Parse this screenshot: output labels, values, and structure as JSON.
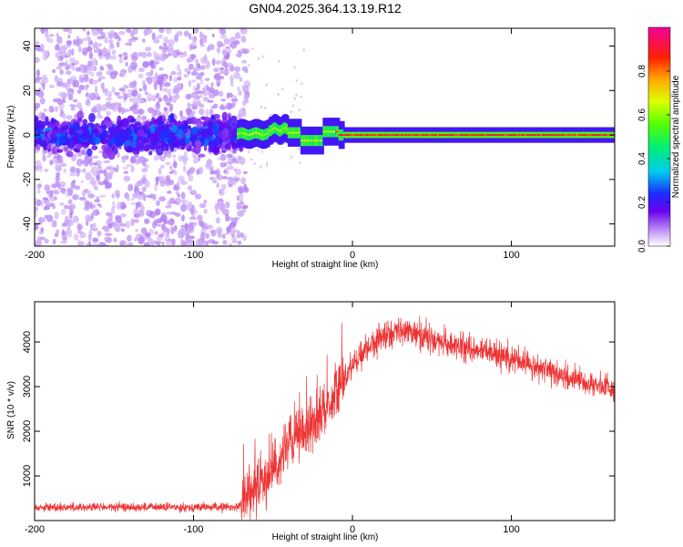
{
  "title": "GN04.2025.364.13.19.R12",
  "chart_data": [
    {
      "type": "heatmap",
      "name": "spectrogram",
      "xlabel": "Height of straight line (km)",
      "ylabel": "Frequency (Hz)",
      "xlim": [
        -200,
        165
      ],
      "ylim": [
        -50,
        48
      ],
      "x_ticks": [
        -200,
        -100,
        0,
        100
      ],
      "y_ticks": [
        -40,
        -20,
        0,
        20,
        40
      ],
      "colorbar": {
        "label": "Normalized spectral amplitude",
        "range": [
          0,
          1
        ],
        "ticks": [
          "0.0",
          "0.2",
          "0.4",
          "0.6",
          "0.8"
        ]
      },
      "features": {
        "noise_region_x": [
          -200,
          -70
        ],
        "noise_band_hz": [
          -10,
          10
        ],
        "signal_start_x": -72,
        "signal_center_hz": 0
      }
    },
    {
      "type": "line",
      "name": "snr",
      "xlabel": "Height of straight line (km)",
      "ylabel": "SNR (10 * v/v)",
      "xlim": [
        -200,
        165
      ],
      "ylim": [
        0,
        4900
      ],
      "x_ticks": [
        -200,
        -100,
        0,
        100
      ],
      "y_ticks": [
        1000,
        2000,
        3000,
        4000
      ],
      "color": "#ee3333",
      "envelope": {
        "x": [
          -200,
          -150,
          -100,
          -75,
          -70,
          -60,
          -50,
          -40,
          -30,
          -20,
          -10,
          0,
          10,
          20,
          30,
          40,
          50,
          60,
          80,
          100,
          120,
          140,
          165
        ],
        "y": [
          300,
          300,
          300,
          300,
          350,
          800,
          1200,
          1700,
          2000,
          2400,
          2900,
          3500,
          3900,
          4150,
          4250,
          4200,
          4050,
          3950,
          3800,
          3650,
          3400,
          3150,
          2950
        ]
      }
    }
  ]
}
